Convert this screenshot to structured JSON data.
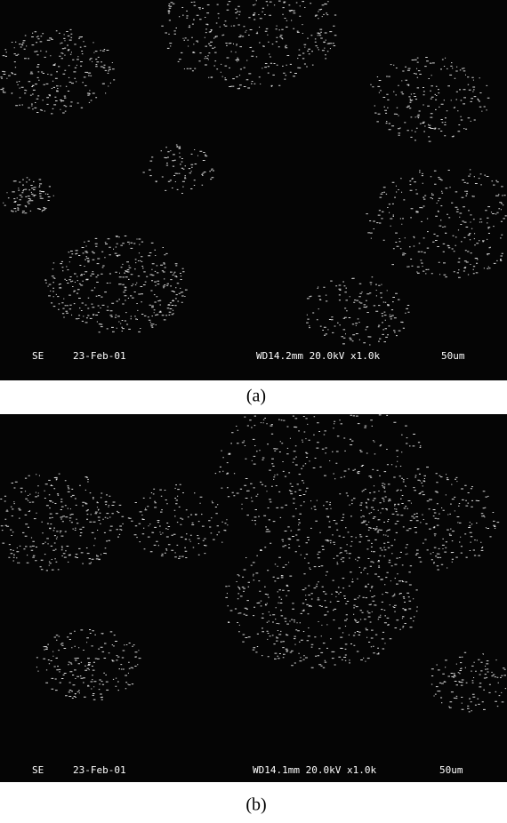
{
  "panels": [
    {
      "label": "(a)",
      "info": {
        "detector": "SE",
        "date": "23-Feb-01",
        "settings": "WD14.2mm 20.0kV x1.0k",
        "scale": "50um"
      }
    },
    {
      "label": "(b)",
      "info": {
        "detector": "SE",
        "date": "23-Feb-01",
        "settings": "WD14.1mm 20.0kV x1.0k",
        "scale": "50um"
      }
    }
  ]
}
